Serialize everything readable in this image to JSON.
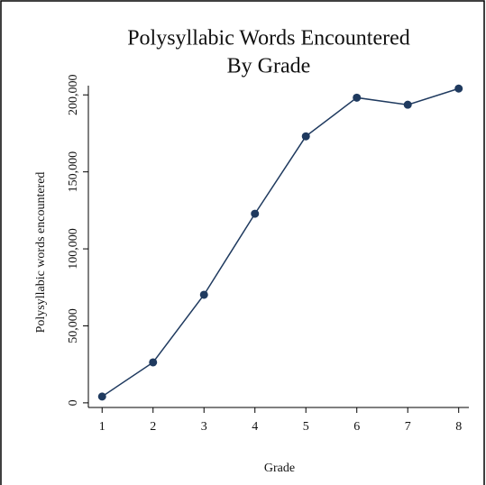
{
  "chart_data": {
    "type": "line",
    "title": [
      "Polysyllabic Words Encountered",
      "By Grade"
    ],
    "x_label": "Grade",
    "y_label": "Polysyllabic words encountered",
    "x": [
      1,
      2,
      3,
      4,
      5,
      6,
      7,
      8
    ],
    "series": [
      {
        "name": "Polysyllabic words encountered",
        "color": "#1f3a5f",
        "values": [
          4100,
          26300,
          70200,
          122800,
          173100,
          198200,
          193600,
          204100
        ]
      }
    ],
    "xlim": [
      0.73,
      8.2
    ],
    "xticks": [
      1,
      2,
      3,
      4,
      5,
      6,
      7,
      8
    ],
    "ylim": [
      -3000,
      206000
    ],
    "yticks": [
      0,
      {
        "value": 50000,
        "label": "50,000"
      },
      {
        "value": 100000,
        "label": "100,000"
      },
      {
        "value": 150000,
        "label": "150,000"
      },
      {
        "value": 200000,
        "label": "200,000"
      }
    ],
    "grid": false
  }
}
